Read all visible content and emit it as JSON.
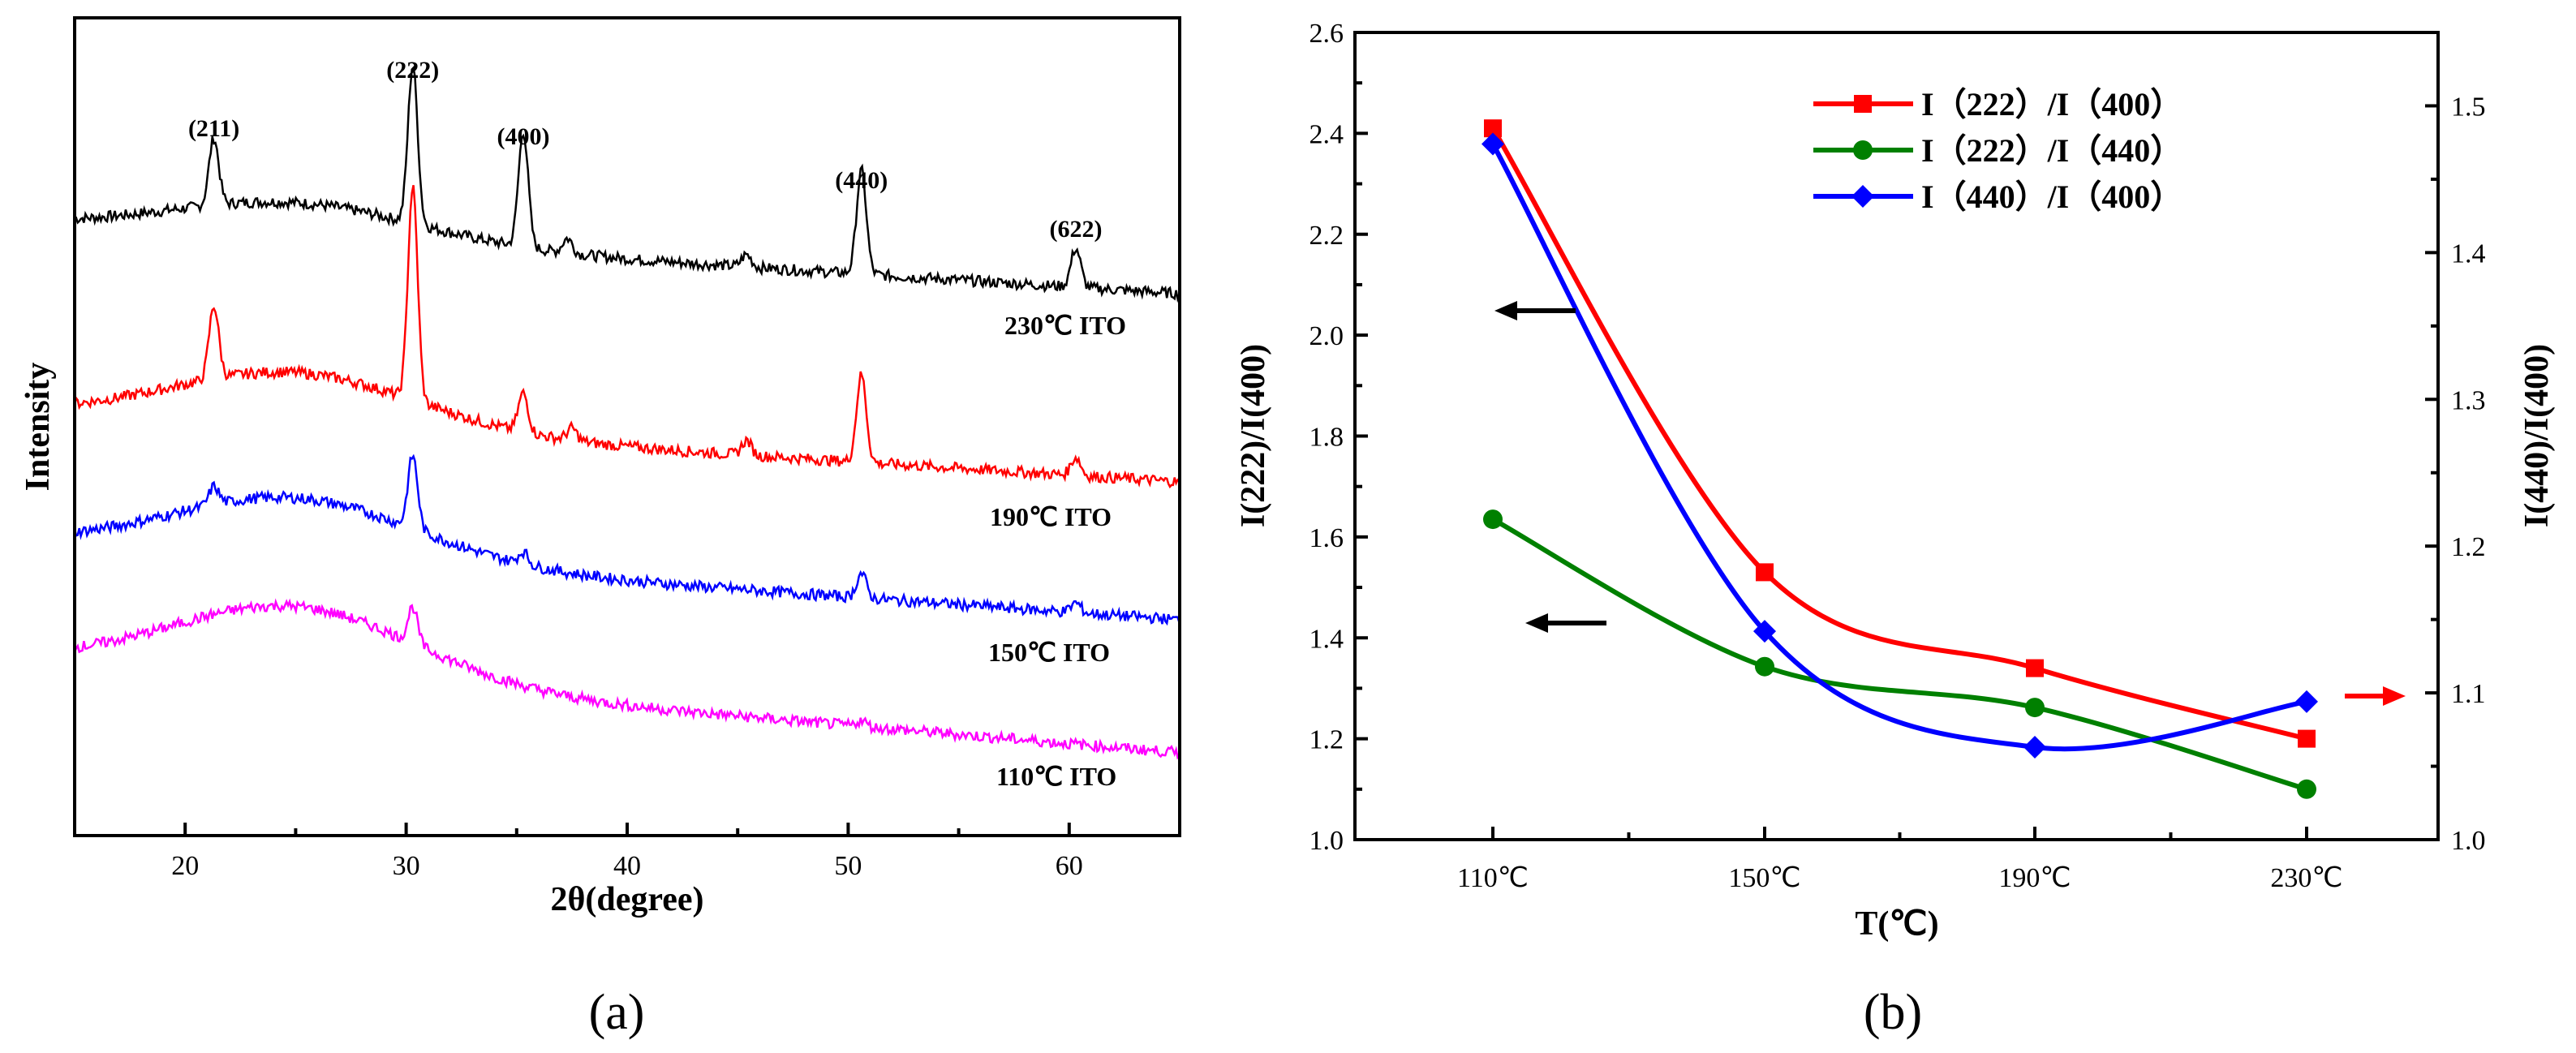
{
  "panel_labels": {
    "a": "(a)",
    "b": "(b)"
  },
  "chart_data": [
    {
      "type": "line",
      "panel": "(a)",
      "title": "",
      "xlabel": "2θ(degree)",
      "ylabel": "Intensity",
      "xlim": [
        15,
        65
      ],
      "xticks": [
        20,
        30,
        40,
        50,
        60
      ],
      "xtick_labels": [
        "20",
        "30",
        "40",
        "50",
        "60"
      ],
      "peak_labels": [
        {
          "x": 21.3,
          "label": "(211)"
        },
        {
          "x": 30.3,
          "label": "(222)"
        },
        {
          "x": 35.3,
          "label": "(400)"
        },
        {
          "x": 50.6,
          "label": "(440)"
        },
        {
          "x": 60.3,
          "label": "(622)"
        }
      ],
      "series": [
        {
          "name": "230℃ ITO",
          "color": "#000000",
          "amorphous_hump": 0.3,
          "peaks": [
            [
              21.3,
              0.55
            ],
            [
              30.3,
              1.3
            ],
            [
              35.3,
              0.95
            ],
            [
              37.3,
              0.12
            ],
            [
              45.4,
              0.1
            ],
            [
              50.6,
              0.85
            ],
            [
              60.3,
              0.32
            ]
          ]
        },
        {
          "name": "190℃ ITO",
          "color": "#ff0000",
          "amorphous_hump": 0.45,
          "peaks": [
            [
              21.3,
              0.6
            ],
            [
              30.3,
              1.75
            ],
            [
              35.3,
              0.32
            ],
            [
              37.5,
              0.1
            ],
            [
              45.4,
              0.12
            ],
            [
              50.6,
              0.72
            ],
            [
              60.3,
              0.15
            ]
          ]
        },
        {
          "name": "150℃ ITO",
          "color": "#0000ff",
          "amorphous_hump": 0.5,
          "peaks": [
            [
              21.3,
              0.15
            ],
            [
              30.3,
              0.6
            ],
            [
              35.3,
              0.1
            ],
            [
              50.6,
              0.2
            ],
            [
              60.3,
              0.08
            ]
          ]
        },
        {
          "name": "110℃ ITO",
          "color": "#ff00ff",
          "amorphous_hump": 0.6,
          "peaks": [
            [
              30.3,
              0.3
            ],
            [
              50.6,
              0.05
            ]
          ]
        }
      ]
    },
    {
      "type": "line",
      "panel": "(b)",
      "title": "",
      "xlabel": "T(℃)",
      "ylabel": "I(222)/I(400)",
      "y2label": "I(440)/I(400)",
      "categories": [
        "110℃",
        "150℃",
        "190℃",
        "230℃"
      ],
      "ylim": [
        1.0,
        2.6
      ],
      "yticks": [
        1.0,
        1.2,
        1.4,
        1.6,
        1.8,
        2.0,
        2.2,
        2.4,
        2.6
      ],
      "ytick_labels": [
        "1.0",
        "1.2",
        "1.4",
        "1.6",
        "1.8",
        "2.0",
        "2.2",
        "2.4",
        "2.6"
      ],
      "y2lim": [
        1.0,
        1.55
      ],
      "y2ticks": [
        1.0,
        1.1,
        1.2,
        1.3,
        1.4,
        1.5
      ],
      "y2tick_labels": [
        "1.0",
        "1.1",
        "1.2",
        "1.3",
        "1.4",
        "1.5"
      ],
      "legend_position": "top-right",
      "series": [
        {
          "name": "I（222）/I（400）",
          "color": "#ff0000",
          "marker": "square",
          "axis": "left",
          "values": [
            2.41,
            1.53,
            1.34,
            1.2
          ]
        },
        {
          "name": "I（222）/I（440）",
          "color": "#008000",
          "marker": "circle",
          "axis": "left",
          "values": [
            1.635,
            1.343,
            1.262,
            1.1
          ]
        },
        {
          "name": "I（440）/I（400）",
          "color": "#0000ff",
          "marker": "diamond",
          "axis": "right",
          "values": [
            1.474,
            1.142,
            1.063,
            1.094
          ]
        }
      ]
    }
  ]
}
